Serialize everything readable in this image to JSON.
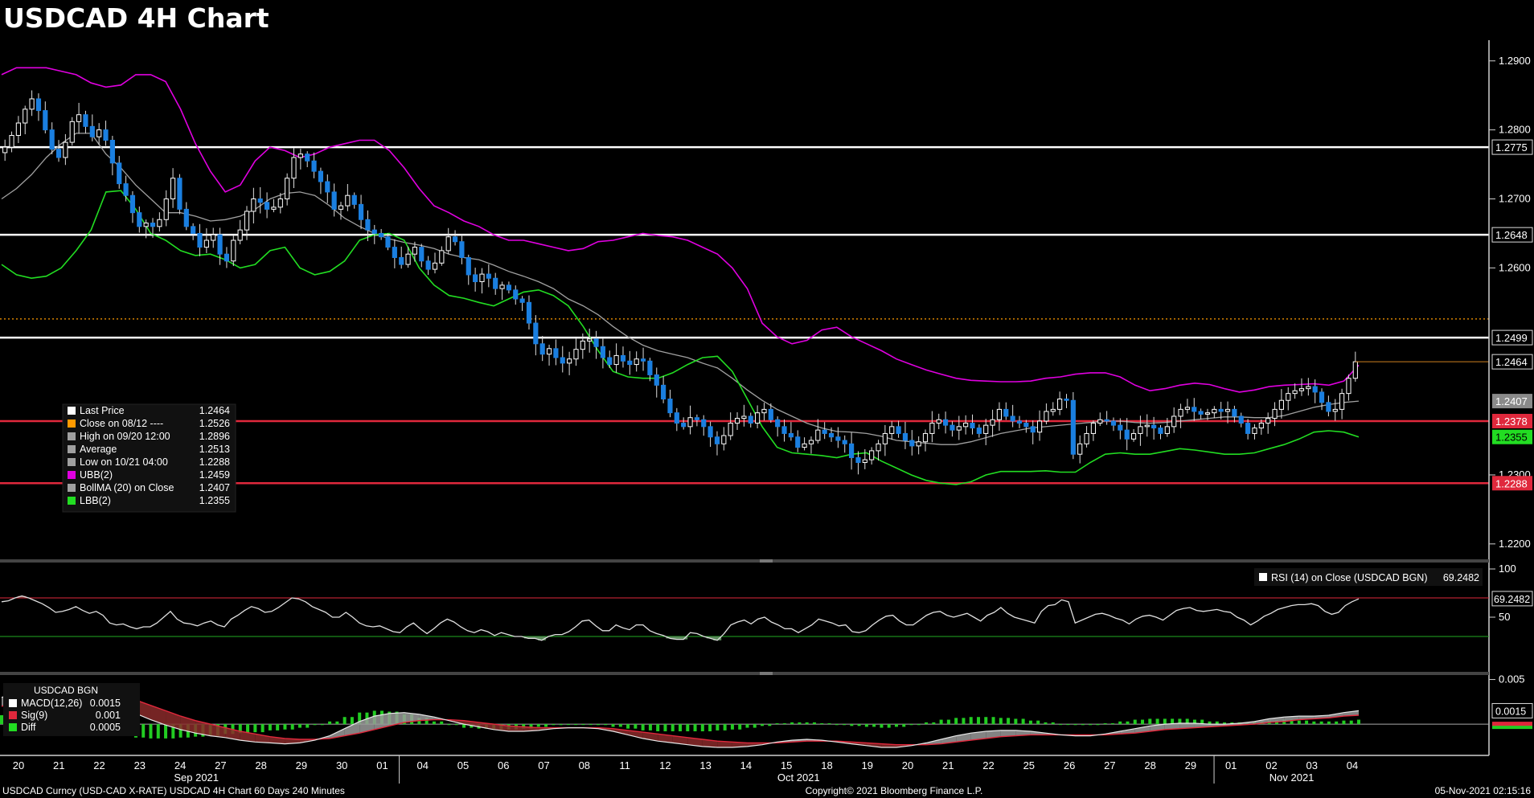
{
  "title": "USDCAD 4H Chart",
  "footer": {
    "left": "USDCAD Curncy (USD-CAD X-RATE) USDCAD 4H Chart 60 Days 240 Minutes",
    "center": "Copyright© 2021 Bloomberg Finance L.P.",
    "right": "05-Nov-2021 02:15:16"
  },
  "colors": {
    "background": "#000000",
    "up_candle": "#ffffff",
    "down_candle": "#1a7fe0",
    "ubb": "#e000e0",
    "boll_ma": "#a0a0a0",
    "lbb": "#22dd22",
    "level_white": "#ffffff",
    "level_red": "#e0283c",
    "close_line": "#ff9a00"
  },
  "legend": {
    "items": [
      {
        "label": "Last Price",
        "value": "1.2464",
        "color": "#ffffff"
      },
      {
        "label": "Close on 08/12 ----",
        "value": "1.2526",
        "color": "#ff9a00"
      },
      {
        "label": "High on 09/20 12:00",
        "value": "1.2896",
        "color": "#a0a0a0"
      },
      {
        "label": "Average",
        "value": "1.2513",
        "color": "#a0a0a0"
      },
      {
        "label": "Low on 10/21 04:00",
        "value": "1.2288",
        "color": "#a0a0a0"
      },
      {
        "label": "UBB(2)",
        "value": "1.2459",
        "color": "#e000e0"
      },
      {
        "label": "BollMA (20)  on Close",
        "value": "1.2407",
        "color": "#a0a0a0"
      },
      {
        "label": "LBB(2)",
        "value": "1.2355",
        "color": "#22dd22"
      }
    ]
  },
  "rsi_panel": {
    "label": "RSI (14)  on Close (USDCAD BGN)",
    "value": "69.2482"
  },
  "macd_panel": {
    "header": "USDCAD BGN",
    "items": [
      {
        "label": "MACD(12,26)",
        "value": "0.0015",
        "color": "#ffffff"
      },
      {
        "label": "Sig(9)",
        "value": "0.001",
        "color": "#e0283c"
      },
      {
        "label": "Diff",
        "value": "0.0005",
        "color": "#22dd22"
      }
    ]
  },
  "chart_data": [
    {
      "type": "candlestick",
      "title": "USDCAD 4H Chart",
      "ylim": [
        1.218,
        1.293
      ],
      "y_ticks": [
        "1.2900",
        "1.2800",
        "1.2700",
        "1.2600",
        "1.2300",
        "1.2200"
      ],
      "x_ticks": [
        "20",
        "21",
        "22",
        "23",
        "24",
        "27",
        "28",
        "29",
        "30",
        "01",
        "04",
        "05",
        "06",
        "07",
        "08",
        "11",
        "12",
        "13",
        "14",
        "15",
        "18",
        "19",
        "20",
        "21",
        "22",
        "25",
        "26",
        "27",
        "28",
        "29",
        "01",
        "02",
        "03",
        "04"
      ],
      "month_labels": [
        "Sep 2021",
        "Oct 2021",
        "Nov 2021"
      ],
      "levels": [
        {
          "value": 1.2775,
          "label": "1.2775",
          "color": "#ffffff"
        },
        {
          "value": 1.2648,
          "label": "1.2648",
          "color": "#ffffff"
        },
        {
          "value": 1.2499,
          "label": "1.2499",
          "color": "#ffffff"
        },
        {
          "value": 1.2378,
          "label": "1.2378",
          "color": "#e0283c"
        },
        {
          "value": 1.2288,
          "label": "1.2288",
          "color": "#e0283c"
        }
      ],
      "close_reference": {
        "value": 1.2526
      },
      "last_price": {
        "value": 1.2464,
        "label": "1.2464"
      },
      "overlay_labels": [
        {
          "value": 1.2407,
          "label": "1.2407",
          "series": "boll_ma"
        },
        {
          "value": 1.2355,
          "label": "1.2355",
          "series": "lbb"
        }
      ],
      "close": [
        1.2775,
        1.2792,
        1.281,
        1.283,
        1.2845,
        1.2828,
        1.28,
        1.2772,
        1.276,
        1.2782,
        1.2812,
        1.2822,
        1.2805,
        1.279,
        1.28,
        1.2785,
        1.2752,
        1.2722,
        1.2705,
        1.268,
        1.266,
        1.2665,
        1.266,
        1.267,
        1.27,
        1.273,
        1.2685,
        1.266,
        1.265,
        1.263,
        1.264,
        1.2648,
        1.262,
        1.261,
        1.264,
        1.2655,
        1.2682,
        1.27,
        1.2695,
        1.2685,
        1.2688,
        1.27,
        1.273,
        1.276,
        1.2765,
        1.2755,
        1.274,
        1.2725,
        1.271,
        1.2685,
        1.269,
        1.2705,
        1.2692,
        1.267,
        1.2655,
        1.265,
        1.2645,
        1.263,
        1.2615,
        1.2605,
        1.262,
        1.263,
        1.261,
        1.2598,
        1.2607,
        1.2625,
        1.2645,
        1.2638,
        1.2615,
        1.259,
        1.258,
        1.2591,
        1.2585,
        1.257,
        1.2575,
        1.2568,
        1.2555,
        1.255,
        1.252,
        1.249,
        1.2475,
        1.2483,
        1.247,
        1.2462,
        1.2468,
        1.2482,
        1.2494,
        1.2497,
        1.2486,
        1.247,
        1.246,
        1.2473,
        1.2465,
        1.246,
        1.2468,
        1.2465,
        1.2445,
        1.243,
        1.241,
        1.239,
        1.2375,
        1.237,
        1.2383,
        1.238,
        1.237,
        1.2355,
        1.2345,
        1.2357,
        1.2375,
        1.2382,
        1.2385,
        1.2375,
        1.239,
        1.2395,
        1.238,
        1.237,
        1.236,
        1.2355,
        1.234,
        1.2345,
        1.235,
        1.2365,
        1.236,
        1.2355,
        1.235,
        1.2345,
        1.2325,
        1.2318,
        1.2322,
        1.2335,
        1.2345,
        1.236,
        1.237,
        1.236,
        1.235,
        1.2342,
        1.2348,
        1.236,
        1.2375,
        1.238,
        1.2372,
        1.2365,
        1.237,
        1.2375,
        1.2368,
        1.236,
        1.2372,
        1.238,
        1.2395,
        1.2385,
        1.2378,
        1.2375,
        1.237,
        1.2362,
        1.2378,
        1.2392,
        1.2395,
        1.241,
        1.2408,
        1.233,
        1.2345,
        1.236,
        1.2375,
        1.238,
        1.2378,
        1.2372,
        1.2365,
        1.2352,
        1.236,
        1.237,
        1.2372,
        1.2368,
        1.236,
        1.237,
        1.2385,
        1.2395,
        1.2398,
        1.2392,
        1.2388,
        1.239,
        1.2395,
        1.2392,
        1.2395,
        1.2385,
        1.2375,
        1.236,
        1.2368,
        1.2375,
        1.2382,
        1.2395,
        1.2408,
        1.2418,
        1.2422,
        1.2425,
        1.2428,
        1.242,
        1.2405,
        1.2392,
        1.2395,
        1.2418,
        1.244,
        1.2464
      ],
      "ubb": [
        1.288,
        1.289,
        1.289,
        1.289,
        1.2885,
        1.288,
        1.2868,
        1.2862,
        1.2865,
        1.288,
        1.288,
        1.287,
        1.283,
        1.278,
        1.274,
        1.271,
        1.272,
        1.2755,
        1.2775,
        1.277,
        1.276,
        1.2765,
        1.2775,
        1.278,
        1.2785,
        1.2785,
        1.277,
        1.2745,
        1.2715,
        1.269,
        1.268,
        1.2668,
        1.266,
        1.2648,
        1.264,
        1.264,
        1.2635,
        1.263,
        1.2625,
        1.2628,
        1.2638,
        1.264,
        1.2645,
        1.265,
        1.2647,
        1.2645,
        1.264,
        1.263,
        1.262,
        1.26,
        1.257,
        1.252,
        1.25,
        1.249,
        1.2495,
        1.251,
        1.2514,
        1.25,
        1.249,
        1.248,
        1.2468,
        1.246,
        1.2452,
        1.2446,
        1.244,
        1.2437,
        1.2436,
        1.2435,
        1.2435,
        1.2436,
        1.244,
        1.2442,
        1.2446,
        1.2448,
        1.2448,
        1.2442,
        1.243,
        1.2422,
        1.2425,
        1.243,
        1.2433,
        1.2431,
        1.2425,
        1.242,
        1.2423,
        1.2428,
        1.243,
        1.2431,
        1.2432,
        1.243,
        1.2436,
        1.2459
      ],
      "boll_ma": [
        1.27,
        1.2715,
        1.2735,
        1.276,
        1.278,
        1.2795,
        1.2795,
        1.2765,
        1.2745,
        1.272,
        1.27,
        1.268,
        1.268,
        1.2675,
        1.2668,
        1.267,
        1.2675,
        1.2685,
        1.27,
        1.2708,
        1.271,
        1.2705,
        1.269,
        1.2672,
        1.266,
        1.265,
        1.2642,
        1.2637,
        1.2633,
        1.2628,
        1.262,
        1.2615,
        1.2612,
        1.2604,
        1.2595,
        1.2588,
        1.258,
        1.257,
        1.2555,
        1.2545,
        1.2532,
        1.2515,
        1.25,
        1.2488,
        1.248,
        1.2475,
        1.247,
        1.2462,
        1.2455,
        1.244,
        1.2423,
        1.2408,
        1.2395,
        1.2385,
        1.2375,
        1.2368,
        1.2363,
        1.2362,
        1.236,
        1.2356,
        1.235,
        1.2348,
        1.2346,
        1.2344,
        1.2344,
        1.2348,
        1.2354,
        1.236,
        1.2364,
        1.2368,
        1.237,
        1.2372,
        1.2374,
        1.2376,
        1.2378,
        1.2378,
        1.2376,
        1.2375,
        1.2376,
        1.2378,
        1.238,
        1.2382,
        1.2384,
        1.2384,
        1.2383,
        1.2383,
        1.2386,
        1.2392,
        1.2398,
        1.2402,
        1.2405,
        1.2407
      ],
      "lbb": [
        1.2605,
        1.259,
        1.2585,
        1.2588,
        1.26,
        1.2625,
        1.2655,
        1.271,
        1.2712,
        1.2685,
        1.265,
        1.264,
        1.2625,
        1.2618,
        1.262,
        1.2612,
        1.26,
        1.2605,
        1.2625,
        1.263,
        1.26,
        1.259,
        1.2595,
        1.261,
        1.264,
        1.2648,
        1.265,
        1.264,
        1.26,
        1.2575,
        1.256,
        1.2556,
        1.255,
        1.2545,
        1.2555,
        1.2565,
        1.2568,
        1.256,
        1.2545,
        1.2515,
        1.248,
        1.245,
        1.2442,
        1.244,
        1.244,
        1.2448,
        1.246,
        1.247,
        1.2472,
        1.245,
        1.241,
        1.237,
        1.234,
        1.2332,
        1.233,
        1.2328,
        1.2325,
        1.233,
        1.2332,
        1.232,
        1.231,
        1.23,
        1.2292,
        1.2288,
        1.2286,
        1.229,
        1.23,
        1.2305,
        1.2305,
        1.2305,
        1.2306,
        1.2304,
        1.2304,
        1.2318,
        1.233,
        1.2332,
        1.233,
        1.233,
        1.2334,
        1.2338,
        1.2336,
        1.2333,
        1.233,
        1.233,
        1.2332,
        1.2338,
        1.2344,
        1.2352,
        1.2362,
        1.2364,
        1.2362,
        1.2355
      ]
    },
    {
      "type": "line",
      "title": "RSI (14)  on Close (USDCAD BGN)",
      "ylim": [
        0,
        100
      ],
      "y_ticks": [
        "100",
        "50"
      ],
      "last_value": "69.2482",
      "upper_band": 70,
      "lower_band": 30,
      "values": [
        66,
        67,
        70,
        72,
        70,
        67,
        64,
        60,
        55,
        56,
        58,
        61,
        57,
        54,
        56,
        52,
        44,
        42,
        43,
        40,
        38,
        40,
        40,
        44,
        50,
        56,
        48,
        44,
        43,
        41,
        44,
        46,
        42,
        40,
        48,
        52,
        57,
        61,
        59,
        55,
        56,
        60,
        65,
        70,
        69,
        66,
        61,
        58,
        55,
        50,
        50,
        55,
        50,
        44,
        41,
        40,
        41,
        38,
        35,
        34,
        40,
        44,
        38,
        33,
        38,
        44,
        48,
        45,
        40,
        36,
        34,
        37,
        35,
        31,
        34,
        32,
        30,
        30,
        28,
        28,
        26,
        30,
        32,
        32,
        35,
        40,
        46,
        47,
        41,
        36,
        36,
        42,
        39,
        37,
        42,
        42,
        36,
        33,
        31,
        28,
        27,
        27,
        34,
        33,
        30,
        28,
        26,
        33,
        42,
        45,
        47,
        43,
        48,
        50,
        45,
        42,
        38,
        38,
        34,
        38,
        42,
        48,
        46,
        44,
        41,
        42,
        35,
        34,
        36,
        42,
        47,
        51,
        52,
        46,
        42,
        42,
        47,
        52,
        55,
        56,
        52,
        50,
        52,
        54,
        50,
        46,
        52,
        55,
        60,
        54,
        50,
        48,
        46,
        44,
        56,
        62,
        63,
        68,
        66,
        44,
        47,
        50,
        53,
        54,
        52,
        49,
        47,
        43,
        48,
        51,
        52,
        50,
        47,
        52,
        57,
        59,
        60,
        57,
        56,
        57,
        58,
        56,
        55,
        50,
        47,
        42,
        46,
        51,
        54,
        58,
        60,
        62,
        63,
        63,
        64,
        62,
        56,
        53,
        55,
        62,
        66,
        69
      ]
    },
    {
      "type": "macd",
      "title": "USDCAD BGN",
      "ylim": [
        -0.0035,
        0.0055
      ],
      "y_ticks": [
        "0.005"
      ],
      "last_values": {
        "macd": "0.0015",
        "signal": "0.001",
        "diff": "0.0005"
      },
      "macd": [
        0.003,
        0.0035,
        0.004,
        0.0043,
        0.0045,
        0.0042,
        0.0036,
        0.0028,
        0.002,
        0.0012,
        0.0005,
        -0.0001,
        -0.0006,
        -0.001,
        -0.0013,
        -0.0015,
        -0.0018,
        -0.002,
        -0.0021,
        -0.0022,
        -0.0021,
        -0.0018,
        -0.0013,
        -0.0005,
        0.0003,
        0.0009,
        0.0012,
        0.0013,
        0.0011,
        0.0008,
        0.0004,
        0.0,
        -0.0003,
        -0.0006,
        -0.0008,
        -0.0008,
        -0.0007,
        -0.0005,
        -0.0004,
        -0.0004,
        -0.0005,
        -0.0008,
        -0.0012,
        -0.0016,
        -0.0019,
        -0.0021,
        -0.0023,
        -0.0025,
        -0.0026,
        -0.0026,
        -0.0025,
        -0.0023,
        -0.002,
        -0.0018,
        -0.0017,
        -0.0018,
        -0.002,
        -0.0022,
        -0.0024,
        -0.0026,
        -0.0026,
        -0.0024,
        -0.0021,
        -0.0017,
        -0.0013,
        -0.001,
        -0.0008,
        -0.0007,
        -0.0007,
        -0.0008,
        -0.001,
        -0.0012,
        -0.0013,
        -0.0013,
        -0.0011,
        -0.0008,
        -0.0005,
        -0.0002,
        0.0,
        0.0001,
        0.0001,
        0.0,
        0.0,
        0.0001,
        0.0003,
        0.0006,
        0.0008,
        0.0009,
        0.0009,
        0.001,
        0.0013,
        0.0015
      ],
      "signal": [
        0.002,
        0.0025,
        0.003,
        0.0034,
        0.0037,
        0.0039,
        0.0039,
        0.0036,
        0.0032,
        0.0027,
        0.0021,
        0.0015,
        0.0009,
        0.0004,
        0.0,
        -0.0004,
        -0.0008,
        -0.0011,
        -0.0014,
        -0.0016,
        -0.0017,
        -0.0017,
        -0.0016,
        -0.0013,
        -0.001,
        -0.0006,
        -0.0002,
        0.0002,
        0.0004,
        0.0005,
        0.0005,
        0.0004,
        0.0002,
        0.0,
        -0.0002,
        -0.0003,
        -0.0004,
        -0.0004,
        -0.0004,
        -0.0004,
        -0.0004,
        -0.0005,
        -0.0007,
        -0.0009,
        -0.0011,
        -0.0013,
        -0.0015,
        -0.0017,
        -0.0019,
        -0.002,
        -0.0021,
        -0.0021,
        -0.0021,
        -0.002,
        -0.0019,
        -0.0019,
        -0.0019,
        -0.002,
        -0.0021,
        -0.0022,
        -0.0023,
        -0.0023,
        -0.0023,
        -0.0022,
        -0.002,
        -0.0018,
        -0.0016,
        -0.0014,
        -0.0013,
        -0.0012,
        -0.0012,
        -0.0012,
        -0.0012,
        -0.0012,
        -0.0012,
        -0.0011,
        -0.001,
        -0.0008,
        -0.0006,
        -0.0005,
        -0.0004,
        -0.0003,
        -0.0002,
        -0.0001,
        0.0,
        0.0002,
        0.0003,
        0.0005,
        0.0006,
        0.0007,
        0.0009,
        0.001
      ]
    }
  ]
}
